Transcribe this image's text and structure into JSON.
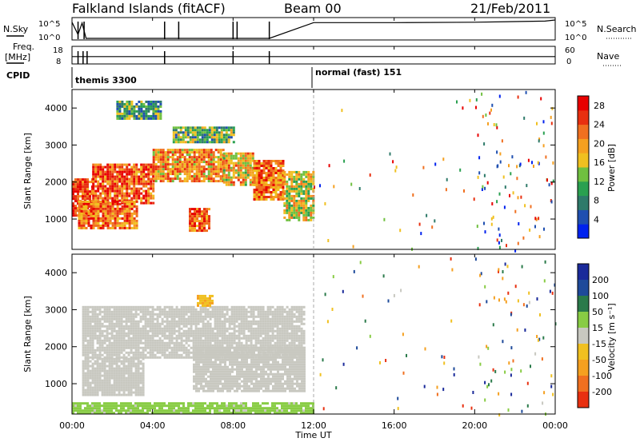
{
  "header": {
    "title": "Falkland Islands (fitACF)",
    "beam": "Beam 00",
    "date": "21/Feb/2011"
  },
  "strips": {
    "nsky_label": "N.Sky",
    "nsearch_label": "N.Search",
    "nsky_ticks": [
      "10^5",
      "10^0"
    ],
    "nsearch_ticks": [
      "10^5",
      "10^0"
    ],
    "freq_label_1": "Freq.",
    "freq_label_2": "[MHz]",
    "freq_ticks": [
      "18",
      "8"
    ],
    "nave_label": "Nave",
    "nave_ticks": [
      "60",
      "0"
    ],
    "cpid_label": "CPID",
    "cpid_1": "themis 3300",
    "cpid_2": "normal (fast) 151"
  },
  "axes": {
    "xlabel": "Time UT",
    "x_ticks": [
      "00:00",
      "04:00",
      "08:00",
      "12:00",
      "16:00",
      "20:00",
      "00:00"
    ],
    "ylabel": "Slant Range [km]",
    "y_ticks": [
      "1000",
      "2000",
      "3000",
      "4000"
    ]
  },
  "colorbars": {
    "power_title": "Power [dB]",
    "power_ticks": [
      "4",
      "8",
      "12",
      "16",
      "20",
      "24",
      "28"
    ],
    "power_colors": [
      "#0022ee",
      "#1f4fb0",
      "#2e7a6a",
      "#2aa050",
      "#70c040",
      "#f0c020",
      "#f5a020",
      "#f07020",
      "#e83010",
      "#e80000"
    ],
    "velocity_title": "Velocity [m s⁻¹]",
    "velocity_ticks": [
      "200",
      "100",
      "50",
      "15",
      "-15",
      "-50",
      "-100",
      "-200"
    ],
    "velocity_colors": [
      "#1a2a9a",
      "#1e4a9a",
      "#2a7a4a",
      "#88cc44",
      "#c8c8c0",
      "#f0c020",
      "#f5a020",
      "#f07020",
      "#e83010"
    ]
  },
  "chart_data": [
    {
      "type": "line",
      "title": "N.Sky / N.Search",
      "x_range": [
        "00:00",
        "24:00"
      ],
      "ylim_log": [
        "10^0",
        "10^5"
      ],
      "series": [
        {
          "name": "N.Sky",
          "x": [
            0,
            0.3,
            0.5,
            0.7,
            5.2,
            8.0,
            9.8,
            12,
            16,
            20,
            23.5,
            24
          ],
          "y_log10": [
            4.2,
            1.0,
            4.0,
            0.0,
            0.0,
            0.0,
            0.0,
            4.1,
            4.1,
            4.2,
            4.5,
            4.8
          ]
        },
        {
          "name": "N.Search",
          "x": [
            0,
            12,
            24
          ],
          "y_log10": [
            4.0,
            4.0,
            4.0
          ]
        }
      ]
    },
    {
      "type": "line",
      "title": "Freq. / Nave",
      "x_range": [
        "00:00",
        "24:00"
      ],
      "series": [
        {
          "name": "Freq. [MHz]",
          "x": [
            0,
            6,
            12,
            18,
            24
          ],
          "y": [
            12,
            12,
            12,
            12,
            12
          ]
        },
        {
          "name": "Nave",
          "x": [
            0,
            12,
            24
          ],
          "y": [
            20,
            20,
            20
          ]
        }
      ]
    },
    {
      "type": "heatmap",
      "title": "Power [dB]",
      "xlabel": "Time UT",
      "ylabel": "Slant Range [km]",
      "x_range_hours": [
        0,
        24
      ],
      "y_range_km": [
        180,
        4500
      ],
      "value_range": [
        0,
        30
      ],
      "regions": [
        {
          "t": [
            0.0,
            1.0
          ],
          "r": [
            1100,
            2100
          ],
          "value": 26
        },
        {
          "t": [
            1.0,
            4.0
          ],
          "r": [
            1400,
            2500
          ],
          "value": 24
        },
        {
          "t": [
            4.0,
            7.5
          ],
          "r": [
            2000,
            2900
          ],
          "value": 20
        },
        {
          "t": [
            7.5,
            9.0
          ],
          "r": [
            1900,
            2800
          ],
          "value": 18
        },
        {
          "t": [
            9.0,
            10.5
          ],
          "r": [
            1500,
            2600
          ],
          "value": 22
        },
        {
          "t": [
            10.5,
            12.0
          ],
          "r": [
            1000,
            2300
          ],
          "value": 16
        },
        {
          "t": [
            0.3,
            3.2
          ],
          "r": [
            750,
            1500
          ],
          "value": 22
        },
        {
          "t": [
            5.8,
            6.8
          ],
          "r": [
            700,
            1300
          ],
          "value": 24
        },
        {
          "t": [
            2.2,
            4.4
          ],
          "r": [
            3700,
            4200
          ],
          "value": 10
        },
        {
          "t": [
            5.0,
            8.0
          ],
          "r": [
            3100,
            3500
          ],
          "value": 12
        }
      ]
    },
    {
      "type": "heatmap",
      "title": "Velocity [m s-1]",
      "xlabel": "Time UT",
      "ylabel": "Slant Range [km]",
      "x_range_hours": [
        0,
        24
      ],
      "y_range_km": [
        180,
        4500
      ],
      "value_range": [
        -200,
        200
      ],
      "regions": [
        {
          "t": [
            0.5,
            11.5
          ],
          "r": [
            1700,
            3100
          ],
          "value": 0
        },
        {
          "t": [
            0.5,
            3.5
          ],
          "r": [
            700,
            1700
          ],
          "value": 0
        },
        {
          "t": [
            6.0,
            11.5
          ],
          "r": [
            800,
            2000
          ],
          "value": 0
        },
        {
          "t": [
            6.2,
            7.0
          ],
          "r": [
            3100,
            3400
          ],
          "value": -60
        },
        {
          "t": [
            0.0,
            12.0
          ],
          "r": [
            180,
            500
          ],
          "value": 40
        }
      ]
    }
  ]
}
